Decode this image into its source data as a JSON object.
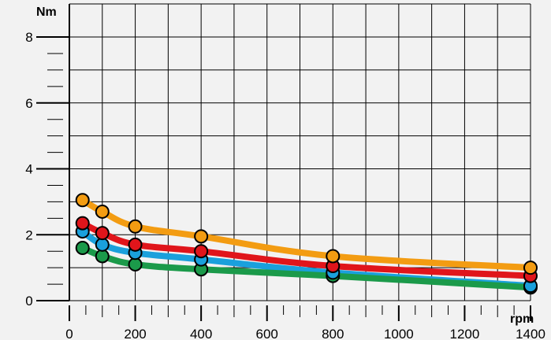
{
  "chart_data": {
    "type": "line",
    "xlabel": "rpm",
    "ylabel": "Nm",
    "xlim": [
      0,
      1400
    ],
    "ylim": [
      0,
      8
    ],
    "x_ticks": [
      0,
      200,
      400,
      600,
      800,
      1000,
      1200,
      1400
    ],
    "y_ticks": [
      0,
      2,
      4,
      6,
      8
    ],
    "grid": true,
    "series": [
      {
        "color": "#f39c12",
        "x": [
          40,
          100,
          200,
          400,
          800,
          1400
        ],
        "values": [
          3.05,
          2.7,
          2.25,
          1.95,
          1.35,
          1.0
        ]
      },
      {
        "color": "#e0151b",
        "x": [
          40,
          100,
          200,
          400,
          800,
          1400
        ],
        "values": [
          2.35,
          2.05,
          1.7,
          1.5,
          1.05,
          0.75
        ]
      },
      {
        "color": "#1aa0dc",
        "x": [
          40,
          100,
          200,
          400,
          800,
          1400
        ],
        "values": [
          2.1,
          1.7,
          1.45,
          1.25,
          0.85,
          0.45
        ]
      },
      {
        "color": "#1b9a4a",
        "x": [
          40,
          100,
          200,
          400,
          800,
          1400
        ],
        "values": [
          1.6,
          1.35,
          1.1,
          0.95,
          0.75,
          0.4
        ]
      }
    ]
  }
}
